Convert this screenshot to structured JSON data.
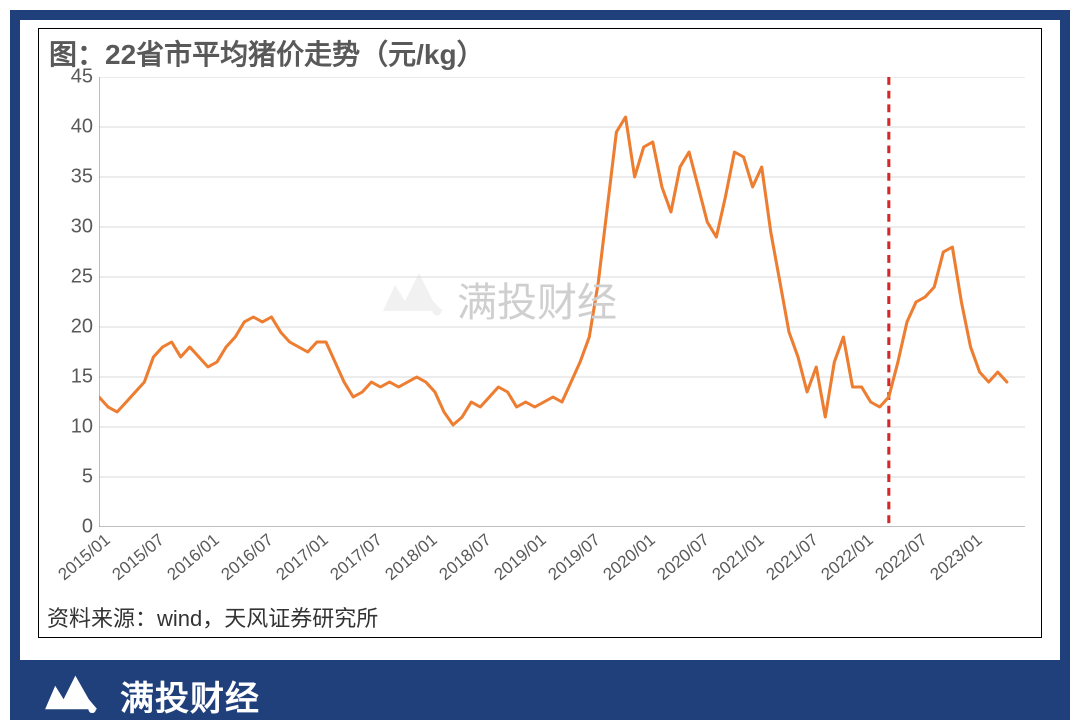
{
  "chart": {
    "type": "line",
    "title": "图：22省市平均猪价走势（元/kg）",
    "source": "资料来源：wind，天风证券研究所",
    "title_color": "#595959",
    "title_fontsize": 28,
    "line_color": "#ed7d31",
    "line_width": 3,
    "grid_color": "#d9d9d9",
    "axis_color": "#808080",
    "tick_font_color": "#595959",
    "tick_fontsize": 20,
    "xlabel_fontsize": 17,
    "background_color": "#ffffff",
    "frame_color": "#20407c",
    "ylim": [
      0,
      45
    ],
    "ytick_step": 5,
    "yticks": [
      0,
      5,
      10,
      15,
      20,
      25,
      30,
      35,
      40,
      45
    ],
    "xticks": [
      "2015/01",
      "2015/07",
      "2016/01",
      "2016/07",
      "2017/01",
      "2017/07",
      "2018/01",
      "2018/07",
      "2019/01",
      "2019/07",
      "2020/01",
      "2020/07",
      "2021/01",
      "2021/07",
      "2022/01",
      "2022/07",
      "2023/01"
    ],
    "xmin": 0,
    "xmax": 102,
    "xtick_positions": [
      0,
      6,
      12,
      18,
      24,
      30,
      36,
      42,
      48,
      54,
      60,
      66,
      72,
      78,
      84,
      90,
      96
    ],
    "reference_line": {
      "x": 87,
      "color": "#d62728",
      "dash": "8,6",
      "width": 3
    },
    "series": [
      {
        "name": "price",
        "x": [
          0,
          1,
          2,
          3,
          4,
          5,
          6,
          7,
          8,
          9,
          10,
          11,
          12,
          13,
          14,
          15,
          16,
          17,
          18,
          19,
          20,
          21,
          22,
          23,
          24,
          25,
          26,
          27,
          28,
          29,
          30,
          31,
          32,
          33,
          34,
          35,
          36,
          37,
          38,
          39,
          40,
          41,
          42,
          43,
          44,
          45,
          46,
          47,
          48,
          49,
          50,
          51,
          52,
          53,
          54,
          55,
          56,
          57,
          58,
          59,
          60,
          61,
          62,
          63,
          64,
          65,
          66,
          67,
          68,
          69,
          70,
          71,
          72,
          73,
          74,
          75,
          76,
          77,
          78,
          79,
          80,
          81,
          82,
          83,
          84,
          85,
          86,
          87,
          88,
          89,
          90,
          91,
          92,
          93,
          94,
          95,
          96,
          97,
          98,
          99,
          100
        ],
        "y": [
          13.0,
          12.0,
          11.5,
          12.5,
          13.5,
          14.5,
          17.0,
          18.0,
          18.5,
          17.0,
          18.0,
          17.0,
          16.0,
          16.5,
          18.0,
          19.0,
          20.5,
          21.0,
          20.5,
          21.0,
          19.5,
          18.5,
          18.0,
          17.5,
          18.5,
          18.5,
          16.5,
          14.5,
          13.0,
          13.5,
          14.5,
          14.0,
          14.5,
          14.0,
          14.5,
          15.0,
          14.5,
          13.5,
          11.5,
          10.2,
          11.0,
          12.5,
          12.0,
          13.0,
          14.0,
          13.5,
          12.0,
          12.5,
          12.0,
          12.5,
          13.0,
          12.5,
          14.5,
          16.5,
          19.0,
          24.5,
          32.0,
          39.5,
          41.0,
          35.0,
          38.0,
          38.5,
          34.0,
          31.5,
          36.0,
          37.5,
          34.0,
          30.5,
          29.0,
          33.0,
          37.5,
          37.0,
          34.0,
          36.0,
          29.5,
          24.5,
          19.5,
          17.0,
          13.5,
          16.0,
          11.0,
          16.5,
          19.0,
          14.0,
          14.0,
          12.5,
          12.0,
          13.0,
          16.5,
          20.5,
          22.5,
          23.0,
          24.0,
          27.5,
          28.0,
          22.5,
          18.0,
          15.5,
          14.5,
          15.5,
          14.5
        ]
      }
    ]
  },
  "watermark": {
    "text": "满投财经",
    "logo_color": "#cfcfcf"
  },
  "brand": {
    "text": "满投财经",
    "bg": "#20407c",
    "fg": "#ffffff",
    "logo_color": "#ffffff"
  }
}
